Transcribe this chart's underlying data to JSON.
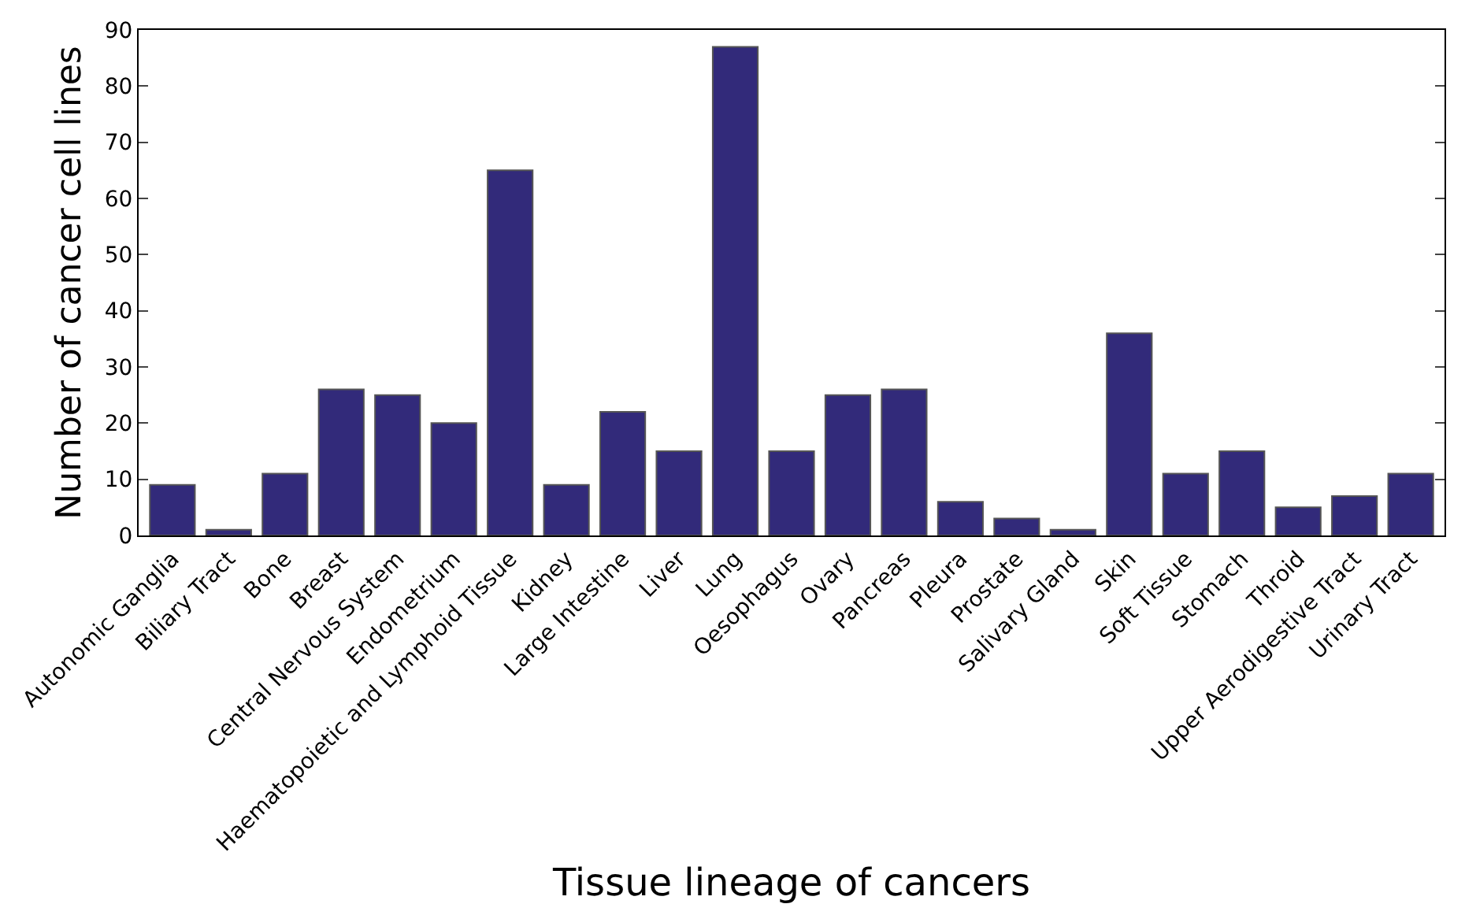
{
  "chart_data": {
    "type": "bar",
    "xlabel": "Tissue lineage of cancers",
    "ylabel": "Number of cancer cell lines",
    "categories": [
      "Autonomic Ganglia",
      "Biliary Tract",
      "Bone",
      "Breast",
      "Central Nervous System",
      "Endometrium",
      "Haematopoietic and Lymphoid Tissue",
      "Kidney",
      "Large Intestine",
      "Liver",
      "Lung",
      "Oesophagus",
      "Ovary",
      "Pancreas",
      "Pleura",
      "Prostate",
      "Salivary Gland",
      "Skin",
      "Soft Tissue",
      "Stomach",
      "Throid",
      "Upper Aerodigestive Tract",
      "Urinary Tract"
    ],
    "values": [
      9,
      1,
      11,
      26,
      25,
      20,
      65,
      9,
      22,
      15,
      87,
      15,
      25,
      26,
      6,
      3,
      1,
      36,
      11,
      15,
      5,
      7,
      11
    ],
    "color": "#322a7a",
    "ylim": [
      0,
      90
    ],
    "yticks": [
      0,
      10,
      20,
      30,
      40,
      50,
      60,
      70,
      80,
      90
    ]
  }
}
